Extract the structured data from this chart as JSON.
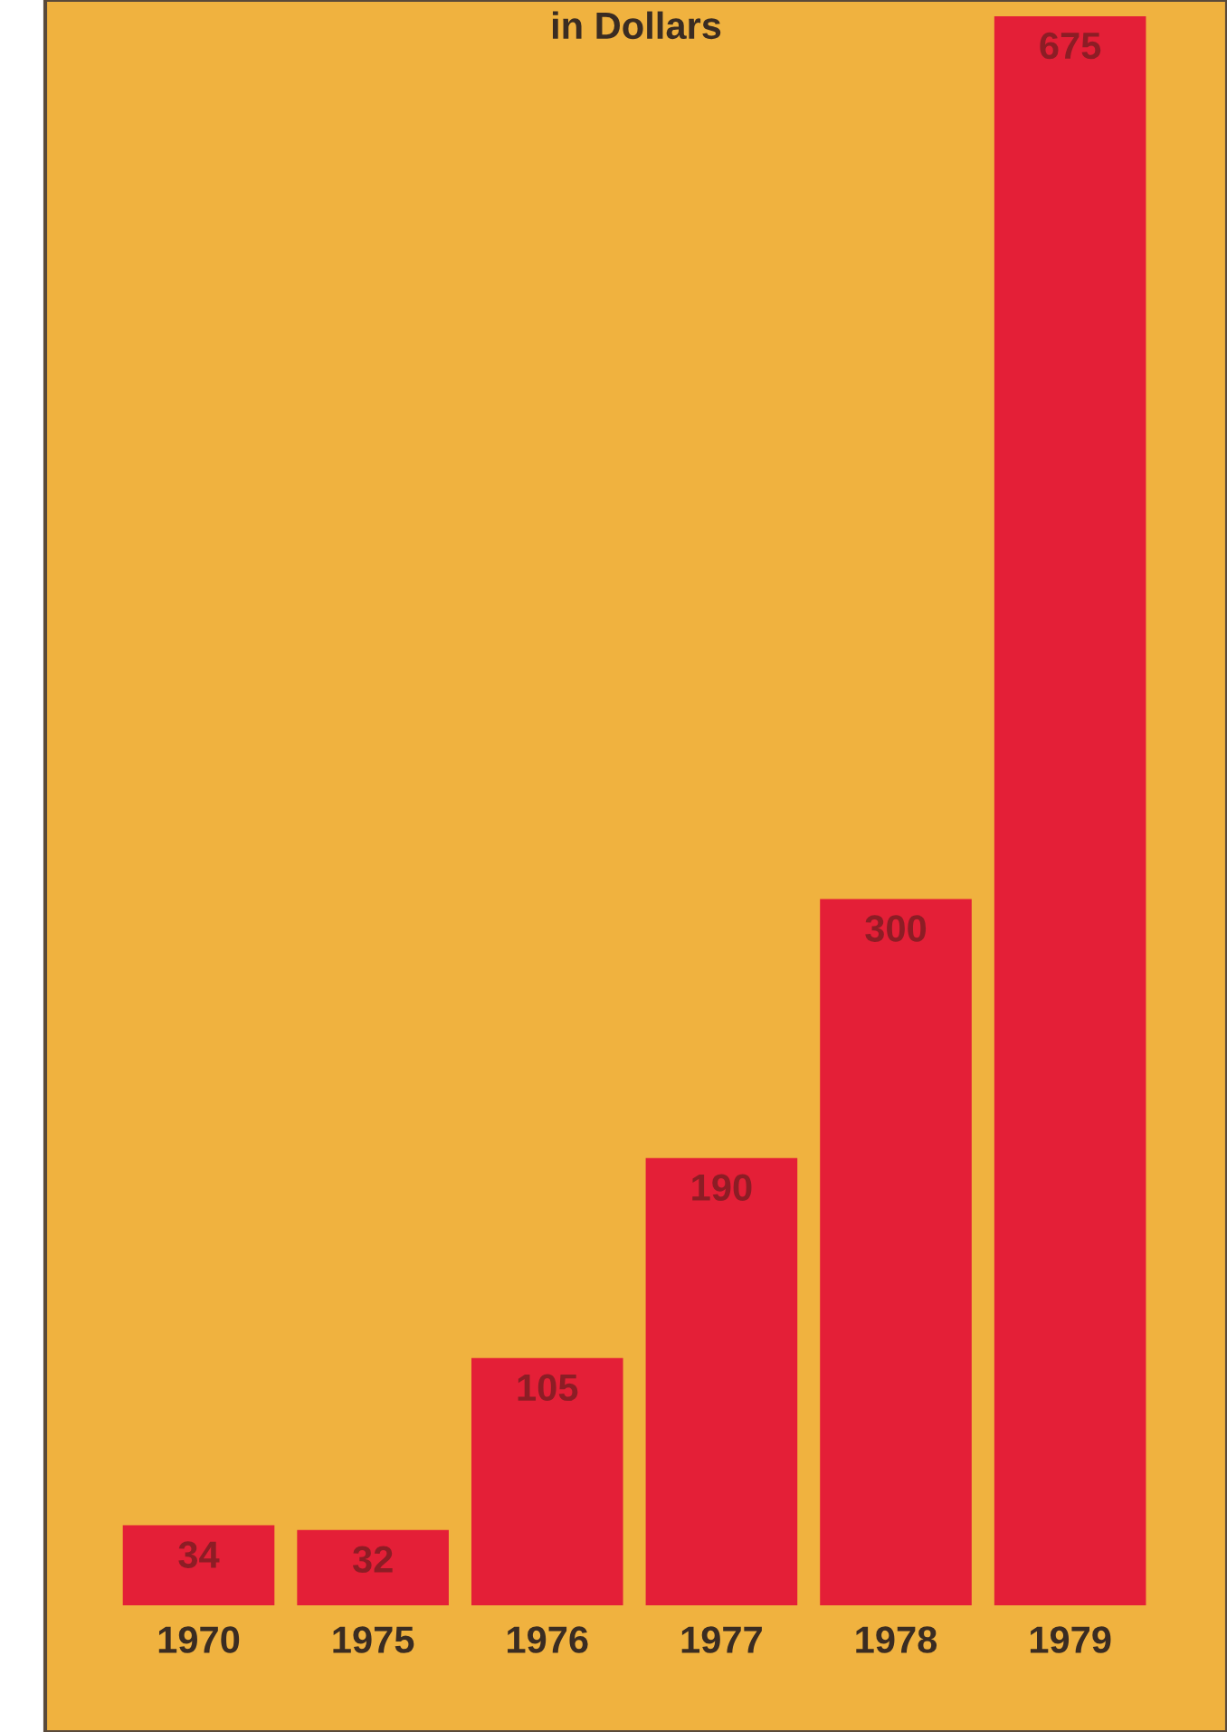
{
  "chart_data": {
    "type": "bar",
    "title": "in Dollars",
    "categories": [
      "1970",
      "1975",
      "1976",
      "1977",
      "1978",
      "1979"
    ],
    "values": [
      34,
      32,
      105,
      190,
      300,
      675
    ],
    "color": "#e41f37",
    "data_labels": true,
    "grid": false,
    "legend": false
  }
}
